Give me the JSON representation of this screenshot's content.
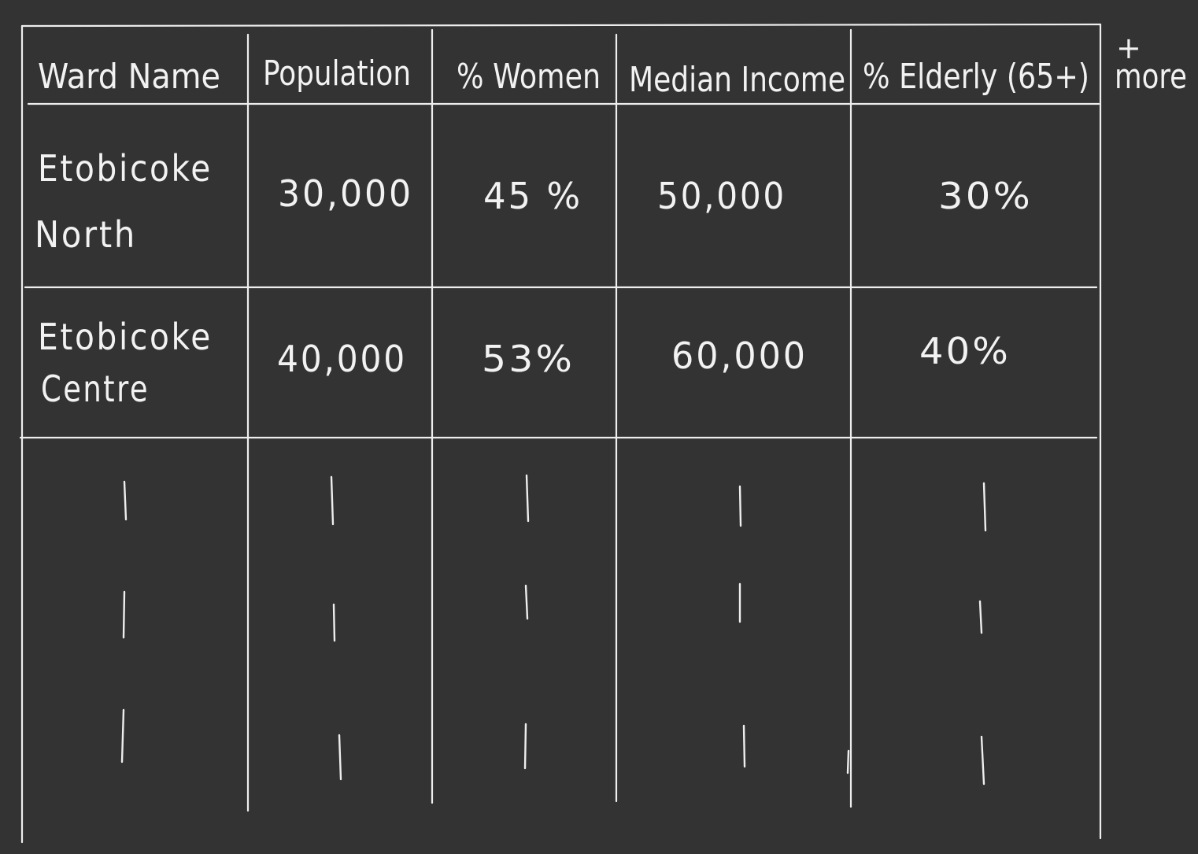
{
  "table": {
    "columns": [
      "Ward Name",
      "Population",
      "% Women",
      "Median Income",
      "% Elderly (65+)"
    ],
    "add_more_label": {
      "plus": "+",
      "text": "more"
    },
    "rows": [
      {
        "ward_line1": "Etobicoke",
        "ward_line2": "North",
        "population": "30,000",
        "women": "45 %",
        "income": "50,000",
        "elderly": "30%"
      },
      {
        "ward_line1": "Etobicoke",
        "ward_line2": "Centre",
        "population": "40,000",
        "women": "53%",
        "income": "60,000",
        "elderly": "40%"
      }
    ]
  },
  "colors": {
    "background": "#333333",
    "ink": "#f2f2f2"
  }
}
